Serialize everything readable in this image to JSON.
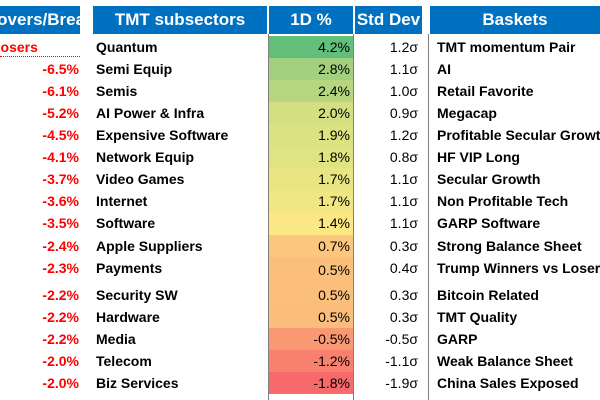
{
  "headers": {
    "left": "Movers/Breakers",
    "subsectors": "TMT subsectors",
    "pct": "1D %",
    "std": "Std Dev",
    "baskets": "Baskets"
  },
  "left_col": {
    "label": "Losers",
    "values": [
      "-6.5%",
      "-6.1%",
      "-5.2%",
      "-4.5%",
      "-4.1%",
      "-3.7%",
      "-3.6%",
      "-3.5%",
      "-2.4%",
      "-2.3%",
      "-2.2%",
      "-2.2%",
      "-2.2%",
      "-2.0%",
      "-2.0%"
    ]
  },
  "rows": [
    {
      "name": "Quantum",
      "pct": "4.2%",
      "std": "1.2σ",
      "color": "#63be7b",
      "basket": "TMT momentum Pair"
    },
    {
      "name": "Semi Equip",
      "pct": "2.8%",
      "std": "1.1σ",
      "color": "#a3d07f",
      "basket": "AI"
    },
    {
      "name": "Semis",
      "pct": "2.4%",
      "std": "1.0σ",
      "color": "#b6d67f",
      "basket": "Retail Favorite"
    },
    {
      "name": "AI Power & Infra",
      "pct": "2.0%",
      "std": "0.9σ",
      "color": "#d3df81",
      "basket": "Megacap"
    },
    {
      "name": "Expensive Software",
      "pct": "1.9%",
      "std": "1.2σ",
      "color": "#dbe281",
      "basket": "Profitable Secular Growth"
    },
    {
      "name": "Network Equip",
      "pct": "1.8%",
      "std": "0.8σ",
      "color": "#e0e382",
      "basket": "HF VIP Long"
    },
    {
      "name": "Video Games",
      "pct": "1.7%",
      "std": "1.1σ",
      "color": "#eae583",
      "basket": "Secular Growth"
    },
    {
      "name": "Internet",
      "pct": "1.7%",
      "std": "1.1σ",
      "color": "#f0e683",
      "basket": "Non Profitable Tech"
    },
    {
      "name": "Software",
      "pct": "1.4%",
      "std": "1.1σ",
      "color": "#fbe783",
      "basket": "GARP Software"
    },
    {
      "name": "Apple Suppliers",
      "pct": "0.7%",
      "std": "0.3σ",
      "color": "#fcc77d",
      "basket": "Strong Balance Sheet"
    },
    {
      "name": "Payments",
      "pct": "0.5%",
      "std": "0.4σ",
      "color": "#fcbf7b",
      "basket": "Trump Winners vs Losers"
    },
    {
      "name": "Security SW",
      "pct": "0.5%",
      "std": "0.3σ",
      "color": "#fcbf7b",
      "basket": "Bitcoin Related"
    },
    {
      "name": "Hardware",
      "pct": "0.5%",
      "std": "0.3σ",
      "color": "#fcbc7b",
      "basket": "TMT Quality"
    },
    {
      "name": "Media",
      "pct": "-0.5%",
      "std": "-0.5σ",
      "color": "#fa9873",
      "basket": "GARP"
    },
    {
      "name": "Telecom",
      "pct": "-1.2%",
      "std": "-1.1σ",
      "color": "#f8806e",
      "basket": "Weak Balance Sheet"
    },
    {
      "name": "Biz Services",
      "pct": "-1.8%",
      "std": "-1.9σ",
      "color": "#f8696b",
      "basket": "China Sales Exposed"
    }
  ]
}
